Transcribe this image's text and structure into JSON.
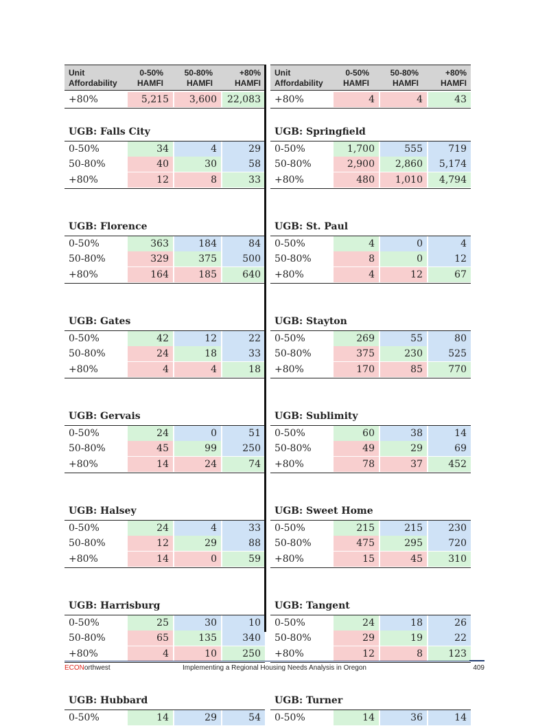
{
  "header": {
    "col0": "Unit Affordability",
    "col1": "0-50% HAMFI",
    "col2": "50-80% HAMFI",
    "col3": "+80% HAMFI"
  },
  "left": {
    "top_row": {
      "label": "+80%",
      "v": [
        "5,215",
        "3,600",
        "22,083"
      ]
    },
    "groups": [
      {
        "title": "UGB: Falls City",
        "rows": [
          {
            "label": "0-50%",
            "v": [
              "34",
              "4",
              "29"
            ]
          },
          {
            "label": "50-80%",
            "v": [
              "40",
              "30",
              "58"
            ]
          },
          {
            "label": "+80%",
            "v": [
              "12",
              "8",
              "33"
            ]
          }
        ]
      },
      {
        "title": "UGB: Florence",
        "rows": [
          {
            "label": "0-50%",
            "v": [
              "363",
              "184",
              "84"
            ]
          },
          {
            "label": "50-80%",
            "v": [
              "329",
              "375",
              "500"
            ]
          },
          {
            "label": "+80%",
            "v": [
              "164",
              "185",
              "640"
            ]
          }
        ]
      },
      {
        "title": "UGB: Gates",
        "rows": [
          {
            "label": "0-50%",
            "v": [
              "42",
              "12",
              "22"
            ]
          },
          {
            "label": "50-80%",
            "v": [
              "24",
              "18",
              "33"
            ]
          },
          {
            "label": "+80%",
            "v": [
              "4",
              "4",
              "18"
            ]
          }
        ]
      },
      {
        "title": "UGB: Gervais",
        "rows": [
          {
            "label": "0-50%",
            "v": [
              "24",
              "0",
              "51"
            ]
          },
          {
            "label": "50-80%",
            "v": [
              "45",
              "99",
              "250"
            ]
          },
          {
            "label": "+80%",
            "v": [
              "14",
              "24",
              "74"
            ]
          }
        ]
      },
      {
        "title": "UGB: Halsey",
        "rows": [
          {
            "label": "0-50%",
            "v": [
              "24",
              "4",
              "33"
            ]
          },
          {
            "label": "50-80%",
            "v": [
              "12",
              "29",
              "88"
            ]
          },
          {
            "label": "+80%",
            "v": [
              "14",
              "0",
              "59"
            ]
          }
        ]
      },
      {
        "title": "UGB: Harrisburg",
        "rows": [
          {
            "label": "0-50%",
            "v": [
              "25",
              "30",
              "10"
            ]
          },
          {
            "label": "50-80%",
            "v": [
              "65",
              "135",
              "340"
            ]
          },
          {
            "label": "+80%",
            "v": [
              "4",
              "10",
              "250"
            ]
          }
        ]
      },
      {
        "title": "UGB: Hubbard",
        "rows": [
          {
            "label": "0-50%",
            "v": [
              "14",
              "29",
              "54"
            ]
          }
        ]
      }
    ]
  },
  "right": {
    "top_row": {
      "label": "+80%",
      "v": [
        "4",
        "4",
        "43"
      ]
    },
    "groups": [
      {
        "title": "UGB: Springfield",
        "rows": [
          {
            "label": "0-50%",
            "v": [
              "1,700",
              "555",
              "719"
            ]
          },
          {
            "label": "50-80%",
            "v": [
              "2,900",
              "2,860",
              "5,174"
            ]
          },
          {
            "label": "+80%",
            "v": [
              "480",
              "1,010",
              "4,794"
            ]
          }
        ]
      },
      {
        "title": "UGB: St. Paul",
        "rows": [
          {
            "label": "0-50%",
            "v": [
              "4",
              "0",
              "4"
            ]
          },
          {
            "label": "50-80%",
            "v": [
              "8",
              "0",
              "12"
            ]
          },
          {
            "label": "+80%",
            "v": [
              "4",
              "12",
              "67"
            ]
          }
        ]
      },
      {
        "title": "UGB: Stayton",
        "rows": [
          {
            "label": "0-50%",
            "v": [
              "269",
              "55",
              "80"
            ]
          },
          {
            "label": "50-80%",
            "v": [
              "375",
              "230",
              "525"
            ]
          },
          {
            "label": "+80%",
            "v": [
              "170",
              "85",
              "770"
            ]
          }
        ]
      },
      {
        "title": "UGB: Sublimity",
        "rows": [
          {
            "label": "0-50%",
            "v": [
              "60",
              "38",
              "14"
            ]
          },
          {
            "label": "50-80%",
            "v": [
              "49",
              "29",
              "69"
            ]
          },
          {
            "label": "+80%",
            "v": [
              "78",
              "37",
              "452"
            ]
          }
        ]
      },
      {
        "title": "UGB: Sweet Home",
        "rows": [
          {
            "label": "0-50%",
            "v": [
              "215",
              "215",
              "230"
            ]
          },
          {
            "label": "50-80%",
            "v": [
              "475",
              "295",
              "720"
            ]
          },
          {
            "label": "+80%",
            "v": [
              "15",
              "45",
              "310"
            ]
          }
        ]
      },
      {
        "title": "UGB: Tangent",
        "rows": [
          {
            "label": "0-50%",
            "v": [
              "24",
              "18",
              "26"
            ]
          },
          {
            "label": "50-80%",
            "v": [
              "29",
              "19",
              "22"
            ]
          },
          {
            "label": "+80%",
            "v": [
              "12",
              "8",
              "123"
            ]
          }
        ]
      },
      {
        "title": "UGB: Turner",
        "rows": [
          {
            "label": "0-50%",
            "v": [
              "14",
              "36",
              "14"
            ]
          }
        ]
      }
    ]
  },
  "colors": {
    "green": "#d6f3d9",
    "pink": "#f8cfcf",
    "blue": "#cfe2f6"
  },
  "footer": {
    "brand_econ": "ECON",
    "brand_rest": "orthwest",
    "title": "Implementing a Regional Housing Needs Analysis in Oregon",
    "page": "409"
  }
}
